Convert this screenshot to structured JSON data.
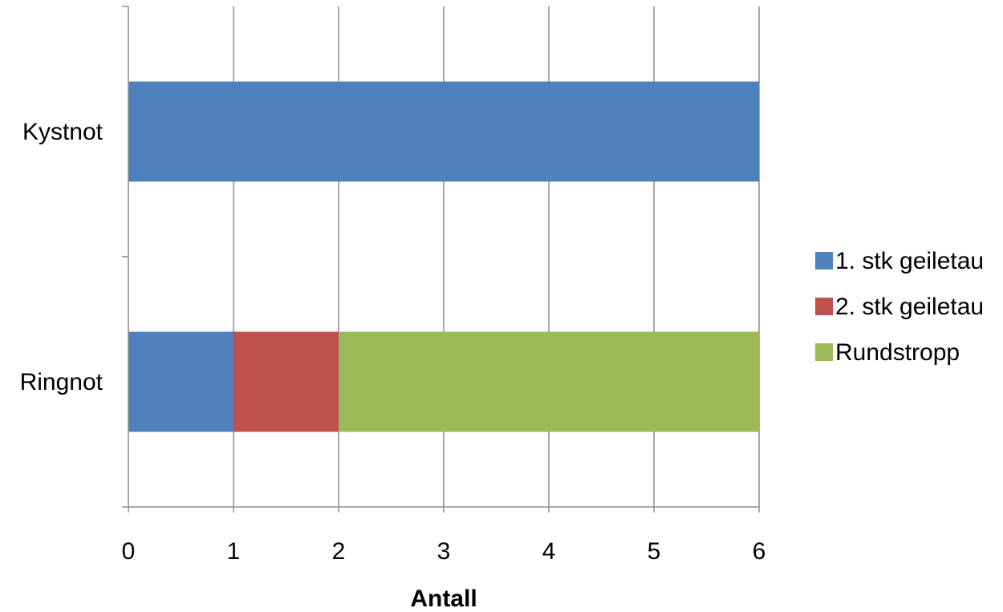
{
  "chart_data": {
    "type": "bar",
    "orientation": "horizontal",
    "stacked": true,
    "categories": [
      "Kystnot",
      "Ringnot"
    ],
    "series": [
      {
        "name": "1. stk geiletau",
        "values": [
          6,
          1
        ],
        "color": "#4f81bd"
      },
      {
        "name": "2. stk geiletau",
        "values": [
          0,
          1
        ],
        "color": "#c0504d"
      },
      {
        "name": "Rundstropp",
        "values": [
          0,
          4
        ],
        "color": "#9bbb59"
      }
    ],
    "xlabel": "Antall",
    "ylabel": "",
    "title": "",
    "xlim": [
      0,
      6
    ],
    "xticks": [
      "0",
      "1",
      "2",
      "3",
      "4",
      "5",
      "6"
    ],
    "grid": "vertical",
    "legend": "right"
  }
}
